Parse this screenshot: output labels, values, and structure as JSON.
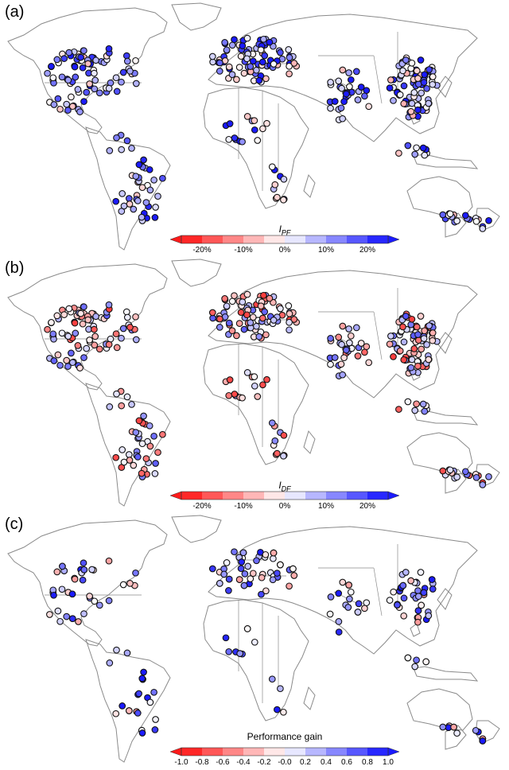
{
  "panels": [
    {
      "label": "(a)",
      "colorbar": {
        "title_main": "I",
        "title_sub": "PF",
        "ticks": [
          "-20%",
          "-10%",
          "0%",
          "10%",
          "20%"
        ],
        "range": [
          -25,
          25
        ]
      },
      "bias": 0.45
    },
    {
      "label": "(b)",
      "colorbar": {
        "title_main": "I",
        "title_sub": "DF",
        "ticks": [
          "-20%",
          "-10%",
          "0%",
          "10%",
          "20%"
        ],
        "range": [
          -25,
          25
        ]
      },
      "bias": -0.05
    },
    {
      "label": "(c)",
      "colorbar": {
        "title_main": "Performance gain",
        "title_sub": "",
        "ticks": [
          "-1.0",
          "-0.8",
          "-0.6",
          "-0.4",
          "-0.2",
          "-0.0",
          "0.2",
          "0.4",
          "0.6",
          "0.8",
          "1.0"
        ],
        "range": [
          -1,
          1
        ]
      },
      "bias": 0.35
    }
  ],
  "colors": {
    "coast": "#8a8a8a",
    "negative": "#ff1a1a",
    "neutral": "#ffffff",
    "positive": "#1a1aff"
  }
}
